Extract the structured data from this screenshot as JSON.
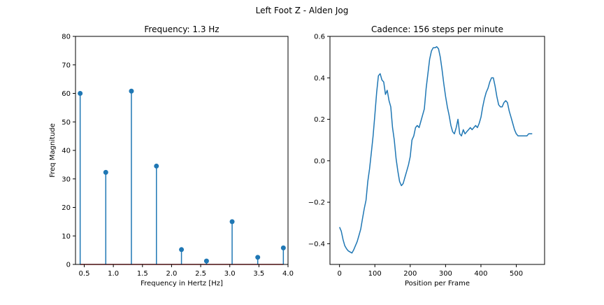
{
  "figure": {
    "suptitle": "Left Foot Z - Alden Jog"
  },
  "chart_data": [
    {
      "type": "stem",
      "title": "Frequency: 1.3 Hz",
      "xlabel": "Frequency in Hertz [Hz]",
      "ylabel": "Freq Magnitude",
      "xlim": [
        0.35,
        4.0
      ],
      "ylim": [
        0,
        80
      ],
      "xticks": [
        "0.5",
        "1.0",
        "1.5",
        "2.0",
        "2.5",
        "3.0",
        "3.5",
        "4.0"
      ],
      "yticks": [
        "0",
        "10",
        "20",
        "30",
        "40",
        "50",
        "60",
        "70",
        "80"
      ],
      "x": [
        0.43,
        0.87,
        1.31,
        1.74,
        2.17,
        2.6,
        3.04,
        3.48,
        3.92
      ],
      "y": [
        60,
        32.3,
        60.8,
        34.5,
        5.2,
        1.2,
        15,
        2.5,
        5.8
      ],
      "stem_color": "#1f77b4",
      "baseline_color": "#d62728",
      "grid": false
    },
    {
      "type": "line",
      "title": "Cadence: 156 steps per minute",
      "xlabel": "Position per Frame",
      "ylabel": "",
      "xlim": [
        -27,
        580
      ],
      "ylim": [
        -0.5,
        0.6
      ],
      "xticks": [
        "0",
        "100",
        "200",
        "300",
        "400",
        "500"
      ],
      "yticks": [
        "−0.4",
        "−0.2",
        "0.0",
        "0.2",
        "0.4",
        "0.6"
      ],
      "x": [
        0,
        5,
        10,
        15,
        20,
        25,
        30,
        35,
        40,
        45,
        50,
        55,
        60,
        65,
        70,
        75,
        80,
        85,
        90,
        95,
        100,
        105,
        110,
        115,
        120,
        125,
        130,
        135,
        140,
        145,
        150,
        155,
        160,
        165,
        170,
        175,
        180,
        185,
        190,
        195,
        200,
        205,
        210,
        215,
        220,
        225,
        230,
        235,
        240,
        245,
        250,
        255,
        260,
        265,
        270,
        275,
        280,
        285,
        290,
        295,
        300,
        305,
        310,
        315,
        320,
        325,
        330,
        335,
        340,
        345,
        350,
        355,
        360,
        365,
        370,
        375,
        380,
        385,
        390,
        395,
        400,
        405,
        410,
        415,
        420,
        425,
        430,
        435,
        440,
        445,
        450,
        455,
        460,
        465,
        470,
        475,
        480,
        485,
        490,
        495,
        500,
        505,
        510,
        515,
        520,
        525,
        530,
        535,
        540,
        545
      ],
      "y": [
        -0.32,
        -0.34,
        -0.38,
        -0.41,
        -0.425,
        -0.435,
        -0.44,
        -0.445,
        -0.43,
        -0.41,
        -0.39,
        -0.36,
        -0.33,
        -0.28,
        -0.23,
        -0.19,
        -0.1,
        -0.04,
        0.04,
        0.12,
        0.22,
        0.33,
        0.41,
        0.42,
        0.39,
        0.38,
        0.32,
        0.34,
        0.29,
        0.26,
        0.16,
        0.1,
        0.01,
        -0.05,
        -0.1,
        -0.12,
        -0.11,
        -0.08,
        -0.05,
        -0.02,
        0.02,
        0.1,
        0.12,
        0.16,
        0.17,
        0.16,
        0.19,
        0.22,
        0.25,
        0.35,
        0.42,
        0.49,
        0.53,
        0.545,
        0.545,
        0.55,
        0.54,
        0.5,
        0.44,
        0.37,
        0.31,
        0.26,
        0.22,
        0.17,
        0.14,
        0.13,
        0.16,
        0.2,
        0.13,
        0.12,
        0.15,
        0.13,
        0.14,
        0.15,
        0.16,
        0.15,
        0.16,
        0.17,
        0.16,
        0.18,
        0.21,
        0.26,
        0.3,
        0.33,
        0.35,
        0.38,
        0.4,
        0.4,
        0.36,
        0.31,
        0.27,
        0.26,
        0.26,
        0.28,
        0.29,
        0.28,
        0.24,
        0.21,
        0.18,
        0.15,
        0.13,
        0.12,
        0.12,
        0.12,
        0.12,
        0.12,
        0.12,
        0.13,
        0.13,
        0.13
      ],
      "line_color": "#1f77b4",
      "grid": false
    }
  ]
}
